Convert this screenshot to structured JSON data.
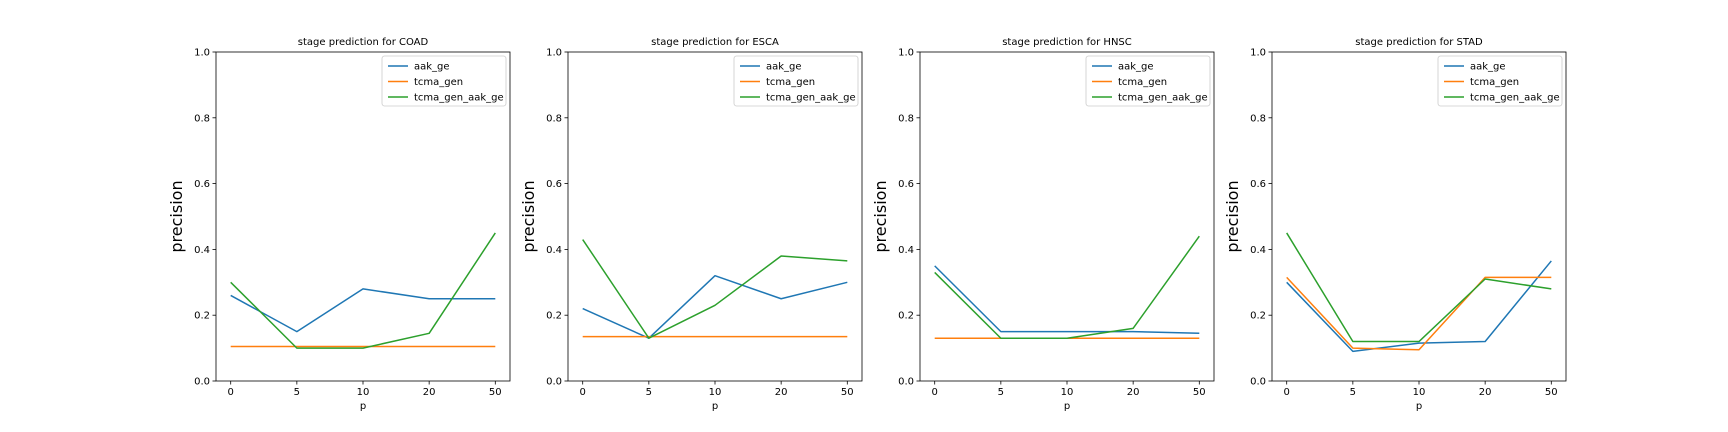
{
  "colors": {
    "aak_ge": "#1f77b4",
    "tcma_gen": "#ff7f0e",
    "tcma_gen_aak_ge": "#2ca02c"
  },
  "chart_data": [
    {
      "type": "line",
      "title": "stage prediction for COAD",
      "xlabel": "p",
      "ylabel": "precision",
      "categories": [
        "0",
        "5",
        "10",
        "20",
        "50"
      ],
      "ylim": [
        0,
        1
      ],
      "yticks": [
        "0.0",
        "0.2",
        "0.4",
        "0.6",
        "0.8",
        "1.0"
      ],
      "legend_position": "top-right",
      "series": [
        {
          "name": "aak_ge",
          "values": [
            0.26,
            0.15,
            0.28,
            0.25,
            0.25
          ]
        },
        {
          "name": "tcma_gen",
          "values": [
            0.105,
            0.105,
            0.105,
            0.105,
            0.105
          ]
        },
        {
          "name": "tcma_gen_aak_ge",
          "values": [
            0.3,
            0.1,
            0.1,
            0.145,
            0.45
          ]
        }
      ]
    },
    {
      "type": "line",
      "title": "stage prediction for ESCA",
      "xlabel": "p",
      "ylabel": "precision",
      "categories": [
        "0",
        "5",
        "10",
        "20",
        "50"
      ],
      "ylim": [
        0,
        1
      ],
      "yticks": [
        "0.0",
        "0.2",
        "0.4",
        "0.6",
        "0.8",
        "1.0"
      ],
      "legend_position": "top-right",
      "series": [
        {
          "name": "aak_ge",
          "values": [
            0.22,
            0.13,
            0.32,
            0.25,
            0.3
          ]
        },
        {
          "name": "tcma_gen",
          "values": [
            0.135,
            0.135,
            0.135,
            0.135,
            0.135
          ]
        },
        {
          "name": "tcma_gen_aak_ge",
          "values": [
            0.43,
            0.13,
            0.23,
            0.38,
            0.365
          ]
        }
      ]
    },
    {
      "type": "line",
      "title": "stage prediction for HNSC",
      "xlabel": "p",
      "ylabel": "precision",
      "categories": [
        "0",
        "5",
        "10",
        "20",
        "50"
      ],
      "ylim": [
        0,
        1
      ],
      "yticks": [
        "0.0",
        "0.2",
        "0.4",
        "0.6",
        "0.8",
        "1.0"
      ],
      "legend_position": "top-right",
      "series": [
        {
          "name": "aak_ge",
          "values": [
            0.35,
            0.15,
            0.15,
            0.15,
            0.145
          ]
        },
        {
          "name": "tcma_gen",
          "values": [
            0.13,
            0.13,
            0.13,
            0.13,
            0.13
          ]
        },
        {
          "name": "tcma_gen_aak_ge",
          "values": [
            0.33,
            0.13,
            0.13,
            0.16,
            0.44
          ]
        }
      ]
    },
    {
      "type": "line",
      "title": "stage prediction for STAD",
      "xlabel": "p",
      "ylabel": "precision",
      "categories": [
        "0",
        "5",
        "10",
        "20",
        "50"
      ],
      "ylim": [
        0,
        1
      ],
      "yticks": [
        "0.0",
        "0.2",
        "0.4",
        "0.6",
        "0.8",
        "1.0"
      ],
      "legend_position": "top-right",
      "series": [
        {
          "name": "aak_ge",
          "values": [
            0.3,
            0.09,
            0.115,
            0.12,
            0.365
          ]
        },
        {
          "name": "tcma_gen",
          "values": [
            0.315,
            0.1,
            0.095,
            0.315,
            0.315
          ]
        },
        {
          "name": "tcma_gen_aak_ge",
          "values": [
            0.45,
            0.12,
            0.12,
            0.31,
            0.28
          ]
        }
      ]
    }
  ]
}
